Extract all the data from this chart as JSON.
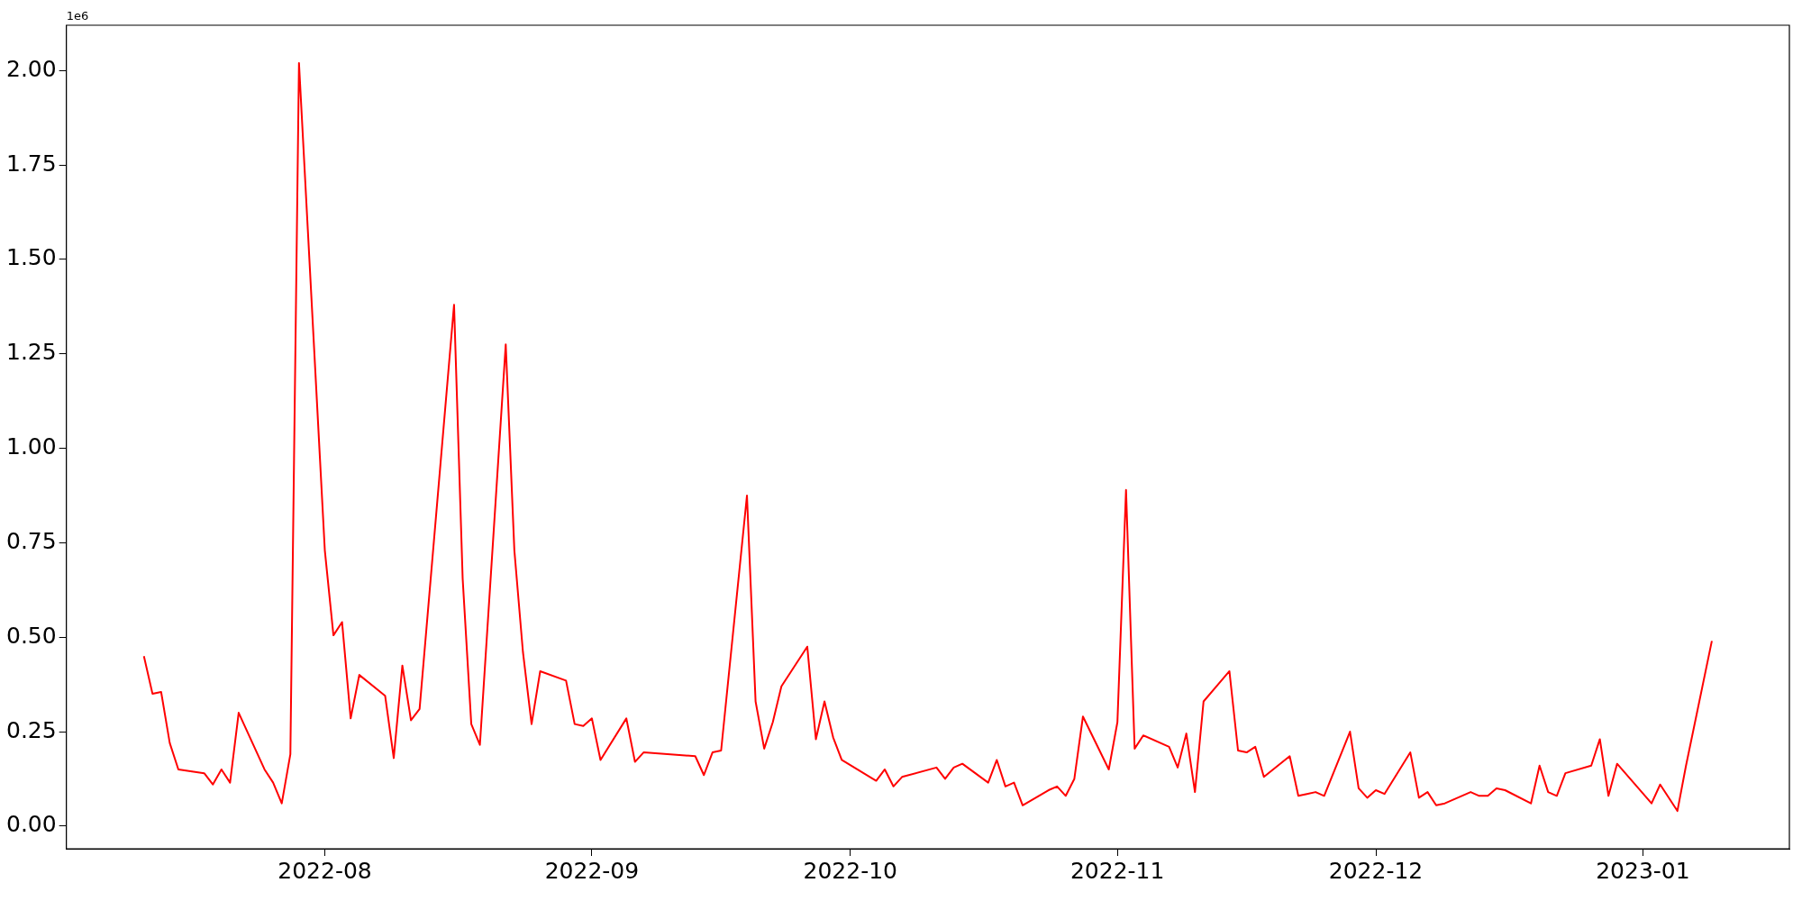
{
  "chart_data": {
    "type": "line",
    "annotations": [
      "1e6"
    ],
    "x": [
      "2022-07-11",
      "2022-07-12",
      "2022-07-13",
      "2022-07-14",
      "2022-07-15",
      "2022-07-18",
      "2022-07-19",
      "2022-07-20",
      "2022-07-21",
      "2022-07-22",
      "2022-07-25",
      "2022-07-26",
      "2022-07-27",
      "2022-07-28",
      "2022-07-29",
      "2022-08-01",
      "2022-08-02",
      "2022-08-03",
      "2022-08-04",
      "2022-08-05",
      "2022-08-08",
      "2022-08-09",
      "2022-08-10",
      "2022-08-11",
      "2022-08-12",
      "2022-08-16",
      "2022-08-17",
      "2022-08-18",
      "2022-08-19",
      "2022-08-22",
      "2022-08-23",
      "2022-08-24",
      "2022-08-25",
      "2022-08-26",
      "2022-08-29",
      "2022-08-30",
      "2022-08-31",
      "2022-09-01",
      "2022-09-02",
      "2022-09-05",
      "2022-09-06",
      "2022-09-07",
      "2022-09-13",
      "2022-09-14",
      "2022-09-15",
      "2022-09-16",
      "2022-09-19",
      "2022-09-20",
      "2022-09-21",
      "2022-09-22",
      "2022-09-23",
      "2022-09-26",
      "2022-09-27",
      "2022-09-28",
      "2022-09-29",
      "2022-09-30",
      "2022-10-04",
      "2022-10-05",
      "2022-10-06",
      "2022-10-07",
      "2022-10-11",
      "2022-10-12",
      "2022-10-13",
      "2022-10-14",
      "2022-10-17",
      "2022-10-18",
      "2022-10-19",
      "2022-10-20",
      "2022-10-21",
      "2022-10-24",
      "2022-10-25",
      "2022-10-26",
      "2022-10-27",
      "2022-10-28",
      "2022-10-31",
      "2022-11-01",
      "2022-11-02",
      "2022-11-03",
      "2022-11-04",
      "2022-11-07",
      "2022-11-08",
      "2022-11-09",
      "2022-11-10",
      "2022-11-11",
      "2022-11-14",
      "2022-11-15",
      "2022-11-16",
      "2022-11-17",
      "2022-11-18",
      "2022-11-21",
      "2022-11-22",
      "2022-11-23",
      "2022-11-24",
      "2022-11-25",
      "2022-11-28",
      "2022-11-29",
      "2022-11-30",
      "2022-12-01",
      "2022-12-02",
      "2022-12-05",
      "2022-12-06",
      "2022-12-07",
      "2022-12-08",
      "2022-12-09",
      "2022-12-12",
      "2022-12-13",
      "2022-12-14",
      "2022-12-15",
      "2022-12-16",
      "2022-12-19",
      "2022-12-20",
      "2022-12-21",
      "2022-12-22",
      "2022-12-23",
      "2022-12-26",
      "2022-12-27",
      "2022-12-28",
      "2022-12-29",
      "2023-01-02",
      "2023-01-03",
      "2023-01-05",
      "2023-01-06",
      "2023-01-09"
    ],
    "series": [
      {
        "color": "#ff0000",
        "values": [
          0.45,
          0.35,
          0.355,
          0.22,
          0.15,
          0.14,
          0.11,
          0.15,
          0.115,
          0.3,
          0.15,
          0.115,
          0.06,
          0.19,
          2.02,
          0.73,
          0.505,
          0.54,
          0.285,
          0.4,
          0.345,
          0.18,
          0.425,
          0.28,
          0.31,
          1.38,
          0.655,
          0.27,
          0.215,
          1.275,
          0.73,
          0.46,
          0.27,
          0.41,
          0.385,
          0.27,
          0.265,
          0.285,
          0.175,
          0.285,
          0.17,
          0.195,
          0.185,
          0.135,
          0.195,
          0.2,
          0.875,
          0.33,
          0.205,
          0.275,
          0.37,
          0.475,
          0.23,
          0.33,
          0.235,
          0.175,
          0.12,
          0.15,
          0.105,
          0.13,
          0.155,
          0.125,
          0.155,
          0.165,
          0.115,
          0.175,
          0.105,
          0.115,
          0.055,
          0.095,
          0.105,
          0.08,
          0.125,
          0.29,
          0.15,
          0.275,
          0.89,
          0.205,
          0.24,
          0.21,
          0.155,
          0.245,
          0.09,
          0.33,
          0.41,
          0.2,
          0.195,
          0.21,
          0.13,
          0.185,
          0.08,
          0.085,
          0.09,
          0.08,
          0.25,
          0.1,
          0.075,
          0.095,
          0.085,
          0.195,
          0.075,
          0.09,
          0.055,
          0.06,
          0.09,
          0.08,
          0.08,
          0.1,
          0.095,
          0.06,
          0.16,
          0.09,
          0.08,
          0.14,
          0.16,
          0.23,
          0.08,
          0.165,
          0.06,
          0.11,
          0.04,
          0.16,
          0.49
        ]
      }
    ],
    "xlim": [
      "2022-07-02",
      "2023-01-18"
    ],
    "xticks": [
      "2022-08",
      "2022-09",
      "2022-10",
      "2022-11",
      "2022-12",
      "2023-01"
    ],
    "ylim": [
      -0.06,
      2.12
    ],
    "yticks": [
      {
        "value": 0,
        "label": "0.00"
      },
      0.25,
      {
        "value": 0.5,
        "label": "0.50"
      },
      0.75,
      {
        "value": 1,
        "label": "1.00"
      },
      1.25,
      {
        "value": 1.5,
        "label": "1.50"
      },
      1.75,
      {
        "value": 2,
        "label": "2.00"
      }
    ],
    "grid": false,
    "legend": false,
    "marker": "none",
    "line_style": "solid"
  }
}
